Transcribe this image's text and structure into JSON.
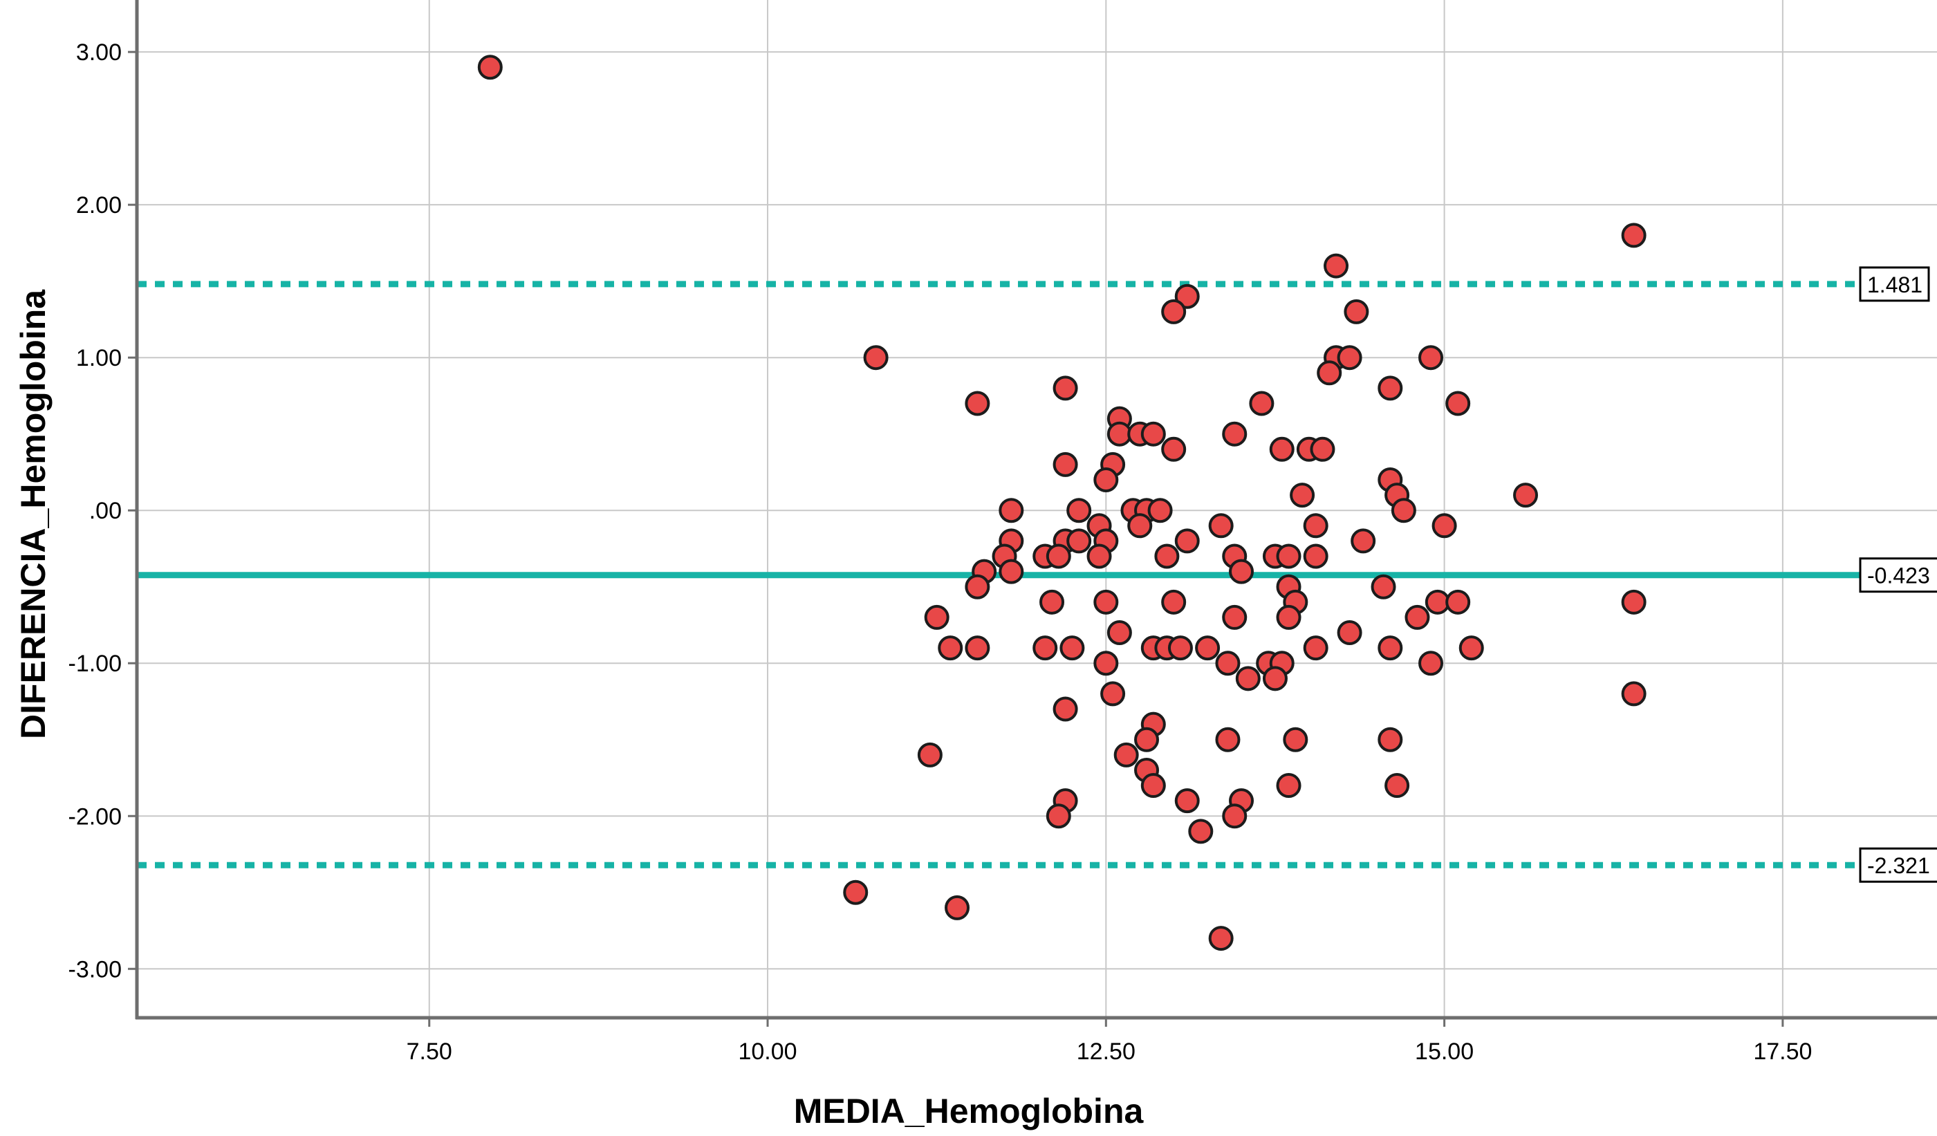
{
  "chart_data": {
    "type": "scatter",
    "title": "",
    "xlabel": "MEDIA_Hemoglobina",
    "ylabel": "DIFERENCIA_Hemoglobina",
    "xlim": [
      5.34,
      18.64
    ],
    "ylim": [
      -3.32,
      3.34
    ],
    "grid": true,
    "legend": "none",
    "x_tick_values": [
      7.5,
      10.0,
      12.5,
      15.0,
      17.5
    ],
    "x_tick_labels": [
      "7.50",
      "10.00",
      "12.50",
      "15.00",
      "17.50"
    ],
    "y_tick_values": [
      3.0,
      2.0,
      1.0,
      0.0,
      -1.0,
      -2.0,
      -3.0
    ],
    "y_tick_labels": [
      "3.00",
      "2.00",
      "1.00",
      ".00",
      "-1.00",
      "-2.00",
      "-3.00"
    ],
    "ref_lines": [
      {
        "value": 1.481,
        "label": "1.481",
        "style": "dashed"
      },
      {
        "value": -0.423,
        "label": "-0.423",
        "style": "solid"
      },
      {
        "value": -2.321,
        "label": "-2.321",
        "style": "dashed"
      }
    ],
    "points": [
      [
        7.95,
        2.9
      ],
      [
        10.8,
        1.0
      ],
      [
        11.55,
        0.7
      ],
      [
        11.8,
        0.0
      ],
      [
        11.8,
        -0.2
      ],
      [
        11.75,
        -0.3
      ],
      [
        11.8,
        -0.4
      ],
      [
        11.6,
        -0.4
      ],
      [
        11.55,
        -0.5
      ],
      [
        11.25,
        -0.7
      ],
      [
        11.35,
        -0.9
      ],
      [
        11.55,
        -0.9
      ],
      [
        11.2,
        -1.6
      ],
      [
        10.65,
        -2.5
      ],
      [
        11.4,
        -2.6
      ],
      [
        16.4,
        1.8
      ],
      [
        14.2,
        1.6
      ],
      [
        13.1,
        1.4
      ],
      [
        13.0,
        1.3
      ],
      [
        14.35,
        1.3
      ],
      [
        14.2,
        1.0
      ],
      [
        14.3,
        1.0
      ],
      [
        14.9,
        1.0
      ],
      [
        14.15,
        0.9
      ],
      [
        14.6,
        0.8
      ],
      [
        12.2,
        0.8
      ],
      [
        13.65,
        0.7
      ],
      [
        15.1,
        0.7
      ],
      [
        12.6,
        0.6
      ],
      [
        12.6,
        0.5
      ],
      [
        12.75,
        0.5
      ],
      [
        12.85,
        0.5
      ],
      [
        13.45,
        0.5
      ],
      [
        13.0,
        0.4
      ],
      [
        13.8,
        0.4
      ],
      [
        14.0,
        0.4
      ],
      [
        14.1,
        0.4
      ],
      [
        12.2,
        0.3
      ],
      [
        12.55,
        0.3
      ],
      [
        12.5,
        0.2
      ],
      [
        14.6,
        0.2
      ],
      [
        13.95,
        0.1
      ],
      [
        14.65,
        0.1
      ],
      [
        15.6,
        0.1
      ],
      [
        12.3,
        0.0
      ],
      [
        12.7,
        0.0
      ],
      [
        12.8,
        0.0
      ],
      [
        12.9,
        0.0
      ],
      [
        14.7,
        0.0
      ],
      [
        12.45,
        -0.1
      ],
      [
        12.75,
        -0.1
      ],
      [
        13.35,
        -0.1
      ],
      [
        14.05,
        -0.1
      ],
      [
        15.0,
        -0.1
      ],
      [
        12.2,
        -0.2
      ],
      [
        12.3,
        -0.2
      ],
      [
        12.5,
        -0.2
      ],
      [
        13.1,
        -0.2
      ],
      [
        14.4,
        -0.2
      ],
      [
        12.05,
        -0.3
      ],
      [
        12.15,
        -0.3
      ],
      [
        12.45,
        -0.3
      ],
      [
        12.95,
        -0.3
      ],
      [
        13.45,
        -0.3
      ],
      [
        13.75,
        -0.3
      ],
      [
        13.85,
        -0.3
      ],
      [
        14.05,
        -0.3
      ],
      [
        13.5,
        -0.4
      ],
      [
        13.85,
        -0.5
      ],
      [
        14.55,
        -0.5
      ],
      [
        12.1,
        -0.6
      ],
      [
        12.5,
        -0.6
      ],
      [
        13.0,
        -0.6
      ],
      [
        13.9,
        -0.6
      ],
      [
        14.95,
        -0.6
      ],
      [
        15.1,
        -0.6
      ],
      [
        16.4,
        -0.6
      ],
      [
        13.45,
        -0.7
      ],
      [
        13.85,
        -0.7
      ],
      [
        14.8,
        -0.7
      ],
      [
        12.6,
        -0.8
      ],
      [
        14.3,
        -0.8
      ],
      [
        12.05,
        -0.9
      ],
      [
        12.25,
        -0.9
      ],
      [
        12.85,
        -0.9
      ],
      [
        12.95,
        -0.9
      ],
      [
        13.05,
        -0.9
      ],
      [
        13.25,
        -0.9
      ],
      [
        14.05,
        -0.9
      ],
      [
        14.6,
        -0.9
      ],
      [
        15.2,
        -0.9
      ],
      [
        12.5,
        -1.0
      ],
      [
        13.4,
        -1.0
      ],
      [
        13.7,
        -1.0
      ],
      [
        13.8,
        -1.0
      ],
      [
        14.9,
        -1.0
      ],
      [
        13.55,
        -1.1
      ],
      [
        13.75,
        -1.1
      ],
      [
        12.55,
        -1.2
      ],
      [
        16.4,
        -1.2
      ],
      [
        12.2,
        -1.3
      ],
      [
        12.85,
        -1.4
      ],
      [
        12.8,
        -1.5
      ],
      [
        13.4,
        -1.5
      ],
      [
        13.9,
        -1.5
      ],
      [
        14.6,
        -1.5
      ],
      [
        12.65,
        -1.6
      ],
      [
        12.8,
        -1.7
      ],
      [
        12.85,
        -1.8
      ],
      [
        13.85,
        -1.8
      ],
      [
        14.65,
        -1.8
      ],
      [
        12.2,
        -1.9
      ],
      [
        13.1,
        -1.9
      ],
      [
        13.5,
        -1.9
      ],
      [
        12.15,
        -2.0
      ],
      [
        13.45,
        -2.0
      ],
      [
        13.2,
        -2.1
      ],
      [
        13.35,
        -2.8
      ]
    ],
    "colors": {
      "point_fill": "#e84848",
      "point_stroke": "#1c1c1c",
      "reference_line": "#17b3a6",
      "grid_line": "#c8c8c8",
      "frame": "#6e6e6e",
      "text": "#000000",
      "ref_box_fill": "#ffffff",
      "ref_box_border": "#000000",
      "background": "#ffffff"
    },
    "marker": {
      "radius": 16,
      "stroke_width": 4
    }
  }
}
